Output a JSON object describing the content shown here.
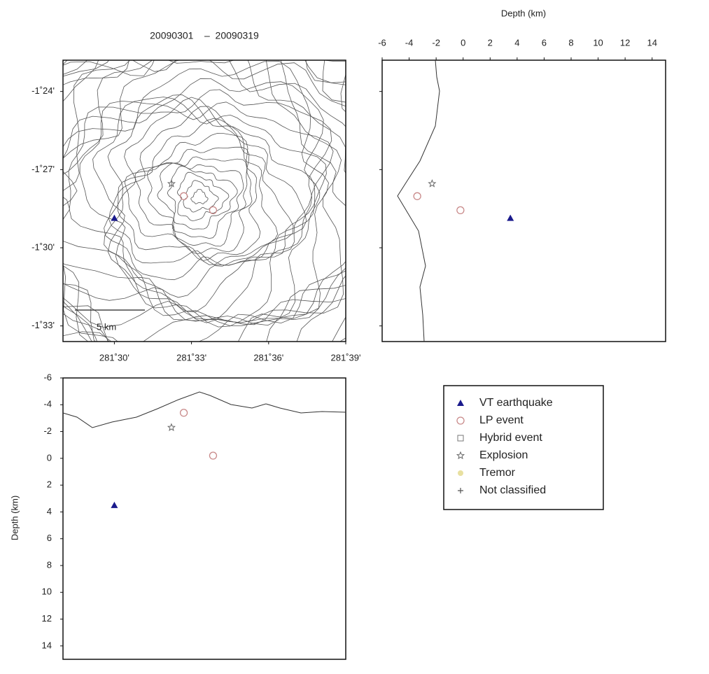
{
  "chart_data": {
    "type": "scatter",
    "title": "20090301    –  20090319",
    "scale_bar_label": "5 km",
    "depth_label": "Depth (km)",
    "xlim": [
      281.4667,
      281.65
    ],
    "xticks": [
      {
        "value": 281.5,
        "label": "281˚30'"
      },
      {
        "value": 281.55,
        "label": "281˚33'"
      },
      {
        "value": 281.6,
        "label": "281˚36'"
      },
      {
        "value": 281.65,
        "label": "281˚39'"
      }
    ],
    "ylim": [
      -1.38,
      -1.56
    ],
    "yticks": [
      {
        "value": -1.4,
        "label": "-1˚24'"
      },
      {
        "value": -1.45,
        "label": "-1˚27'"
      },
      {
        "value": -1.5,
        "label": "-1˚30'"
      },
      {
        "value": -1.55,
        "label": "-1˚33'"
      }
    ],
    "depthlim": [
      -6,
      15
    ],
    "depthticks": [
      -6,
      -4,
      -2,
      0,
      2,
      4,
      6,
      8,
      10,
      12,
      14
    ],
    "series": [
      {
        "name": "VT earthquake",
        "color": "#1a1a8c",
        "marker": "triangle",
        "x": [
          281.5
        ],
        "y": [
          -1.481
        ],
        "depth": [
          3.5
        ]
      },
      {
        "name": "LP event",
        "color": "#c98a8a",
        "marker": "circle",
        "x": [
          281.545,
          281.564
        ],
        "y": [
          -1.467,
          -1.476
        ],
        "depth": [
          -3.4,
          -0.2
        ]
      },
      {
        "name": "Hybrid event",
        "color": "#777777",
        "marker": "square",
        "x": [],
        "y": [],
        "depth": []
      },
      {
        "name": "Explosion",
        "color": "#666666",
        "marker": "star",
        "x": [
          281.537
        ],
        "y": [
          -1.459
        ],
        "depth": [
          -2.3
        ]
      },
      {
        "name": "Tremor",
        "color": "#e8e0a0",
        "marker": "dot",
        "x": [],
        "y": [],
        "depth": []
      },
      {
        "name": "Not classified",
        "color": "#555555",
        "marker": "plus",
        "x": [],
        "y": [],
        "depth": []
      }
    ]
  }
}
